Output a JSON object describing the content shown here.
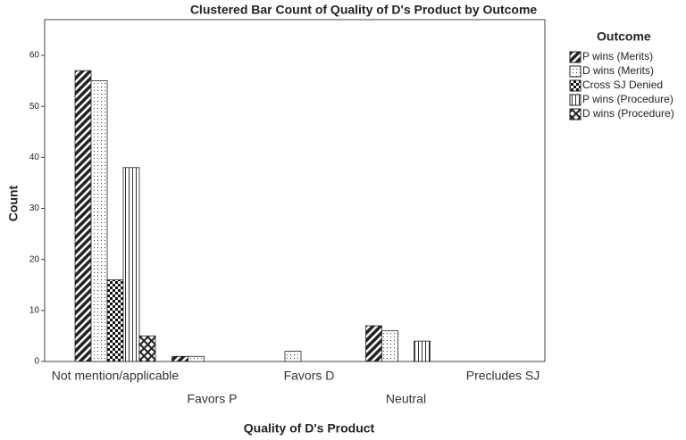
{
  "chart_data": {
    "type": "bar",
    "title": "Clustered Bar Count of Quality of D's Product by Outcome",
    "x_label": "Quality of D's Product",
    "y_label": "Count",
    "legend_title": "Outcome",
    "legend_position": "right",
    "grid": true,
    "categories": [
      "Not mention/applicable",
      "Favors P",
      "Favors D",
      "Neutral",
      "Precludes SJ"
    ],
    "series": [
      {
        "name": "P wins (Merits)",
        "color": "#222222",
        "values": [
          57,
          1,
          0,
          7,
          0
        ]
      },
      {
        "name": "D wins (Merits)",
        "color": "#222222",
        "values": [
          55,
          1,
          2,
          6,
          0
        ]
      },
      {
        "name": "Cross SJ Denied",
        "color": "#222222",
        "values": [
          16,
          0,
          0,
          0,
          0
        ]
      },
      {
        "name": "P wins (Procedure)",
        "color": "#222222",
        "values": [
          38,
          0,
          0,
          4,
          0
        ]
      },
      {
        "name": "D wins (Procedure)",
        "color": "#222222",
        "values": [
          5,
          0,
          0,
          0,
          0
        ]
      }
    ],
    "ylim": [
      0,
      67
    ],
    "yticks": [
      0,
      10,
      20,
      30,
      40,
      50,
      60
    ]
  }
}
